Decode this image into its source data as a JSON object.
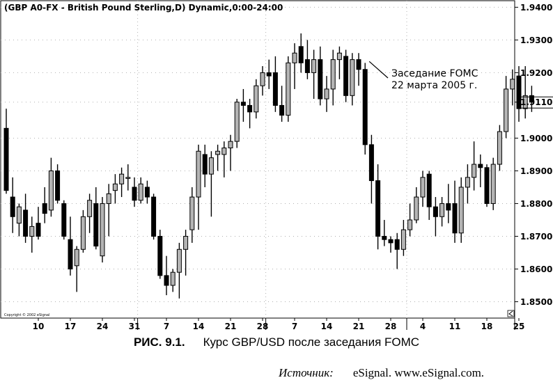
{
  "chart_data": {
    "type": "candlestick",
    "title": "(GBP A0-FX - British Pound Sterling,D) Dynamic,0:00-24:00",
    "copyright": "Copyright © 2002 eSignal",
    "ylim": [
      1.845,
      1.942
    ],
    "y_ticks": [
      "1.9400",
      "1.9300",
      "1.9200",
      "1.9110",
      "1.9000",
      "1.8900",
      "1.8800",
      "1.8700",
      "1.8600",
      "1.8500"
    ],
    "y_tick_values": [
      1.94,
      1.93,
      1.92,
      1.911,
      1.9,
      1.89,
      1.88,
      1.87,
      1.86,
      1.85
    ],
    "last_price_label": "1.9110",
    "x_tick_labels": [
      "10",
      "17",
      "24",
      "31",
      "7",
      "14",
      "21",
      "28",
      "7",
      "14",
      "21",
      "28",
      "4",
      "11",
      "18",
      "25"
    ],
    "x_tick_index": [
      5,
      10,
      15,
      20,
      25,
      30,
      35,
      40,
      45,
      50,
      55,
      60,
      65,
      70,
      75,
      80
    ],
    "month_separator_index": [
      21,
      41,
      63
    ],
    "annotation": {
      "line1": "Заседание FOMC",
      "line2": "22 марта 2005 г.",
      "target_index": 56
    },
    "candles": [
      {
        "o": 1.903,
        "h": 1.909,
        "l": 1.883,
        "c": 1.884
      },
      {
        "o": 1.882,
        "h": 1.888,
        "l": 1.871,
        "c": 1.876
      },
      {
        "o": 1.874,
        "h": 1.88,
        "l": 1.87,
        "c": 1.879
      },
      {
        "o": 1.878,
        "h": 1.883,
        "l": 1.868,
        "c": 1.87
      },
      {
        "o": 1.87,
        "h": 1.876,
        "l": 1.865,
        "c": 1.873
      },
      {
        "o": 1.874,
        "h": 1.879,
        "l": 1.869,
        "c": 1.87
      },
      {
        "o": 1.88,
        "h": 1.885,
        "l": 1.874,
        "c": 1.877
      },
      {
        "o": 1.878,
        "h": 1.894,
        "l": 1.876,
        "c": 1.89
      },
      {
        "o": 1.89,
        "h": 1.892,
        "l": 1.88,
        "c": 1.881
      },
      {
        "o": 1.88,
        "h": 1.881,
        "l": 1.869,
        "c": 1.87
      },
      {
        "o": 1.869,
        "h": 1.876,
        "l": 1.858,
        "c": 1.86
      },
      {
        "o": 1.861,
        "h": 1.867,
        "l": 1.853,
        "c": 1.866
      },
      {
        "o": 1.866,
        "h": 1.878,
        "l": 1.865,
        "c": 1.876
      },
      {
        "o": 1.876,
        "h": 1.883,
        "l": 1.871,
        "c": 1.881
      },
      {
        "o": 1.88,
        "h": 1.885,
        "l": 1.866,
        "c": 1.867
      },
      {
        "o": 1.864,
        "h": 1.882,
        "l": 1.862,
        "c": 1.88
      },
      {
        "o": 1.88,
        "h": 1.886,
        "l": 1.87,
        "c": 1.883
      },
      {
        "o": 1.884,
        "h": 1.889,
        "l": 1.88,
        "c": 1.886
      },
      {
        "o": 1.886,
        "h": 1.891,
        "l": 1.882,
        "c": 1.889
      },
      {
        "o": 1.888,
        "h": 1.892,
        "l": 1.884,
        "c": 1.888
      },
      {
        "o": 1.885,
        "h": 1.888,
        "l": 1.879,
        "c": 1.881
      },
      {
        "o": 1.881,
        "h": 1.888,
        "l": 1.88,
        "c": 1.886
      },
      {
        "o": 1.885,
        "h": 1.887,
        "l": 1.88,
        "c": 1.882
      },
      {
        "o": 1.882,
        "h": 1.883,
        "l": 1.869,
        "c": 1.87
      },
      {
        "o": 1.87,
        "h": 1.872,
        "l": 1.857,
        "c": 1.858
      },
      {
        "o": 1.858,
        "h": 1.864,
        "l": 1.852,
        "c": 1.855
      },
      {
        "o": 1.855,
        "h": 1.86,
        "l": 1.853,
        "c": 1.859
      },
      {
        "o": 1.859,
        "h": 1.868,
        "l": 1.851,
        "c": 1.866
      },
      {
        "o": 1.866,
        "h": 1.872,
        "l": 1.858,
        "c": 1.87
      },
      {
        "o": 1.872,
        "h": 1.885,
        "l": 1.868,
        "c": 1.882
      },
      {
        "o": 1.882,
        "h": 1.898,
        "l": 1.872,
        "c": 1.896
      },
      {
        "o": 1.895,
        "h": 1.898,
        "l": 1.885,
        "c": 1.889
      },
      {
        "o": 1.889,
        "h": 1.896,
        "l": 1.876,
        "c": 1.894
      },
      {
        "o": 1.895,
        "h": 1.898,
        "l": 1.89,
        "c": 1.896
      },
      {
        "o": 1.895,
        "h": 1.899,
        "l": 1.888,
        "c": 1.897
      },
      {
        "o": 1.897,
        "h": 1.901,
        "l": 1.89,
        "c": 1.899
      },
      {
        "o": 1.899,
        "h": 1.912,
        "l": 1.897,
        "c": 1.911
      },
      {
        "o": 1.911,
        "h": 1.915,
        "l": 1.905,
        "c": 1.91
      },
      {
        "o": 1.91,
        "h": 1.912,
        "l": 1.903,
        "c": 1.908
      },
      {
        "o": 1.908,
        "h": 1.918,
        "l": 1.906,
        "c": 1.916
      },
      {
        "o": 1.916,
        "h": 1.922,
        "l": 1.913,
        "c": 1.92
      },
      {
        "o": 1.92,
        "h": 1.924,
        "l": 1.915,
        "c": 1.919
      },
      {
        "o": 1.92,
        "h": 1.925,
        "l": 1.908,
        "c": 1.91
      },
      {
        "o": 1.91,
        "h": 1.916,
        "l": 1.905,
        "c": 1.907
      },
      {
        "o": 1.907,
        "h": 1.925,
        "l": 1.905,
        "c": 1.923
      },
      {
        "o": 1.923,
        "h": 1.929,
        "l": 1.915,
        "c": 1.926
      },
      {
        "o": 1.928,
        "h": 1.932,
        "l": 1.92,
        "c": 1.923
      },
      {
        "o": 1.924,
        "h": 1.93,
        "l": 1.918,
        "c": 1.92
      },
      {
        "o": 1.92,
        "h": 1.927,
        "l": 1.912,
        "c": 1.924
      },
      {
        "o": 1.924,
        "h": 1.928,
        "l": 1.91,
        "c": 1.912
      },
      {
        "o": 1.912,
        "h": 1.919,
        "l": 1.908,
        "c": 1.915
      },
      {
        "o": 1.915,
        "h": 1.927,
        "l": 1.91,
        "c": 1.924
      },
      {
        "o": 1.924,
        "h": 1.928,
        "l": 1.918,
        "c": 1.926
      },
      {
        "o": 1.925,
        "h": 1.927,
        "l": 1.911,
        "c": 1.913
      },
      {
        "o": 1.913,
        "h": 1.926,
        "l": 1.91,
        "c": 1.924
      },
      {
        "o": 1.924,
        "h": 1.926,
        "l": 1.916,
        "c": 1.921
      },
      {
        "o": 1.921,
        "h": 1.923,
        "l": 1.895,
        "c": 1.898
      },
      {
        "o": 1.898,
        "h": 1.901,
        "l": 1.88,
        "c": 1.887
      },
      {
        "o": 1.887,
        "h": 1.892,
        "l": 1.866,
        "c": 1.87
      },
      {
        "o": 1.87,
        "h": 1.875,
        "l": 1.867,
        "c": 1.869
      },
      {
        "o": 1.869,
        "h": 1.87,
        "l": 1.865,
        "c": 1.868
      },
      {
        "o": 1.869,
        "h": 1.871,
        "l": 1.86,
        "c": 1.866
      },
      {
        "o": 1.866,
        "h": 1.875,
        "l": 1.864,
        "c": 1.872
      },
      {
        "o": 1.872,
        "h": 1.88,
        "l": 1.87,
        "c": 1.875
      },
      {
        "o": 1.875,
        "h": 1.885,
        "l": 1.874,
        "c": 1.882
      },
      {
        "o": 1.882,
        "h": 1.89,
        "l": 1.879,
        "c": 1.888
      },
      {
        "o": 1.889,
        "h": 1.89,
        "l": 1.875,
        "c": 1.879
      },
      {
        "o": 1.879,
        "h": 1.882,
        "l": 1.87,
        "c": 1.876
      },
      {
        "o": 1.876,
        "h": 1.882,
        "l": 1.873,
        "c": 1.88
      },
      {
        "o": 1.88,
        "h": 1.886,
        "l": 1.874,
        "c": 1.878
      },
      {
        "o": 1.88,
        "h": 1.887,
        "l": 1.868,
        "c": 1.871
      },
      {
        "o": 1.871,
        "h": 1.888,
        "l": 1.868,
        "c": 1.885
      },
      {
        "o": 1.885,
        "h": 1.892,
        "l": 1.88,
        "c": 1.888
      },
      {
        "o": 1.888,
        "h": 1.899,
        "l": 1.884,
        "c": 1.892
      },
      {
        "o": 1.892,
        "h": 1.895,
        "l": 1.885,
        "c": 1.891
      },
      {
        "o": 1.891,
        "h": 1.892,
        "l": 1.879,
        "c": 1.88
      },
      {
        "o": 1.88,
        "h": 1.894,
        "l": 1.878,
        "c": 1.892
      },
      {
        "o": 1.892,
        "h": 1.904,
        "l": 1.89,
        "c": 1.902
      },
      {
        "o": 1.902,
        "h": 1.919,
        "l": 1.9,
        "c": 1.915
      },
      {
        "o": 1.915,
        "h": 1.921,
        "l": 1.91,
        "c": 1.918
      },
      {
        "o": 1.919,
        "h": 1.922,
        "l": 1.905,
        "c": 1.909
      },
      {
        "o": 1.909,
        "h": 1.922,
        "l": 1.906,
        "c": 1.913
      },
      {
        "o": 1.913,
        "h": 1.916,
        "l": 1.908,
        "c": 1.911
      }
    ]
  },
  "figure": {
    "caption_number": "РИС. 9.1.",
    "caption_text": "Курс GBP/USD после заседания FOMC",
    "source_label": "Источник:",
    "source_text": "eSignal. www.eSignal.com."
  },
  "colors": {
    "up_candle": "#b4b4b4",
    "down_candle": "#000000",
    "grid": "#b0b0b0",
    "axis": "#000000"
  }
}
